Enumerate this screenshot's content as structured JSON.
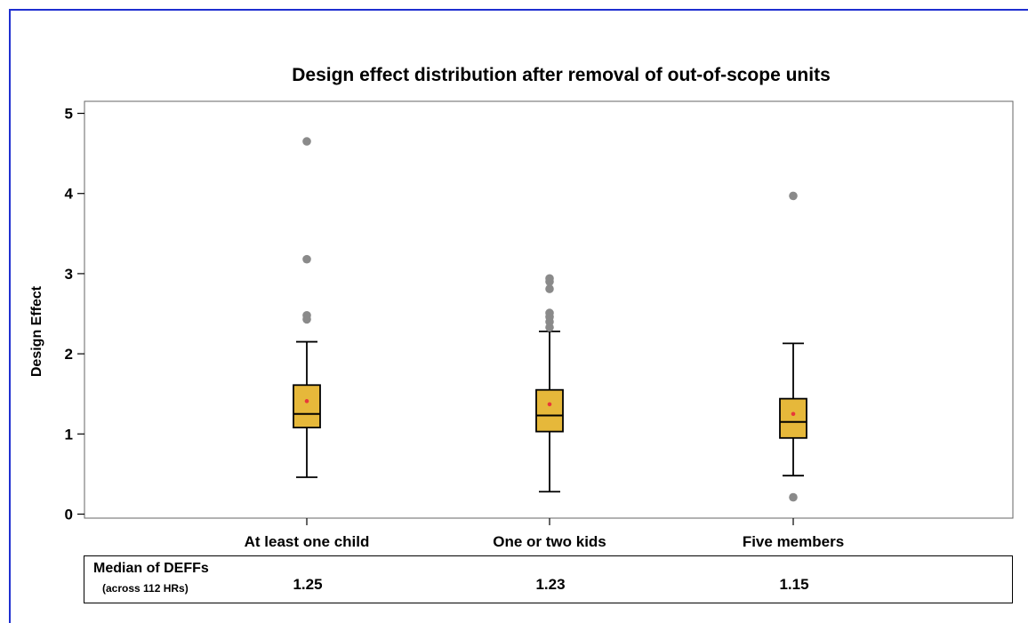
{
  "chart_data": {
    "type": "boxplot",
    "title": "Design effect distribution after removal of out-of-scope units",
    "xlabel": "",
    "ylabel": "Design Effect",
    "ylim": [
      -0.05,
      5.15
    ],
    "yticks": [
      0,
      1,
      2,
      3,
      4,
      5
    ],
    "grid": false,
    "colors": {
      "box_fill": "#E6B83A",
      "mean_marker": "#E8383A",
      "outlier": "#8A8A8A"
    },
    "categories": [
      "At least one child",
      "One or two kids",
      "Five members"
    ],
    "boxes": [
      {
        "category": "At least one child",
        "whisker_low": 0.46,
        "q1": 1.08,
        "median": 1.25,
        "q3": 1.61,
        "whisker_high": 2.15,
        "mean": 1.41,
        "outliers": [
          2.43,
          2.48,
          3.18,
          4.65
        ]
      },
      {
        "category": "One or two kids",
        "whisker_low": 0.28,
        "q1": 1.03,
        "median": 1.23,
        "q3": 1.55,
        "whisker_high": 2.28,
        "mean": 1.37,
        "outliers": [
          2.33,
          2.4,
          2.46,
          2.51,
          2.81,
          2.9,
          2.94
        ]
      },
      {
        "category": "Five members",
        "whisker_low": 0.48,
        "q1": 0.95,
        "median": 1.15,
        "q3": 1.44,
        "whisker_high": 2.13,
        "mean": 1.25,
        "outliers": [
          0.21,
          3.97
        ]
      }
    ]
  },
  "table": {
    "label": "Median of DEFFs",
    "sublabel": "(across 112 HRs)",
    "values": [
      "1.25",
      "1.23",
      "1.15"
    ]
  }
}
